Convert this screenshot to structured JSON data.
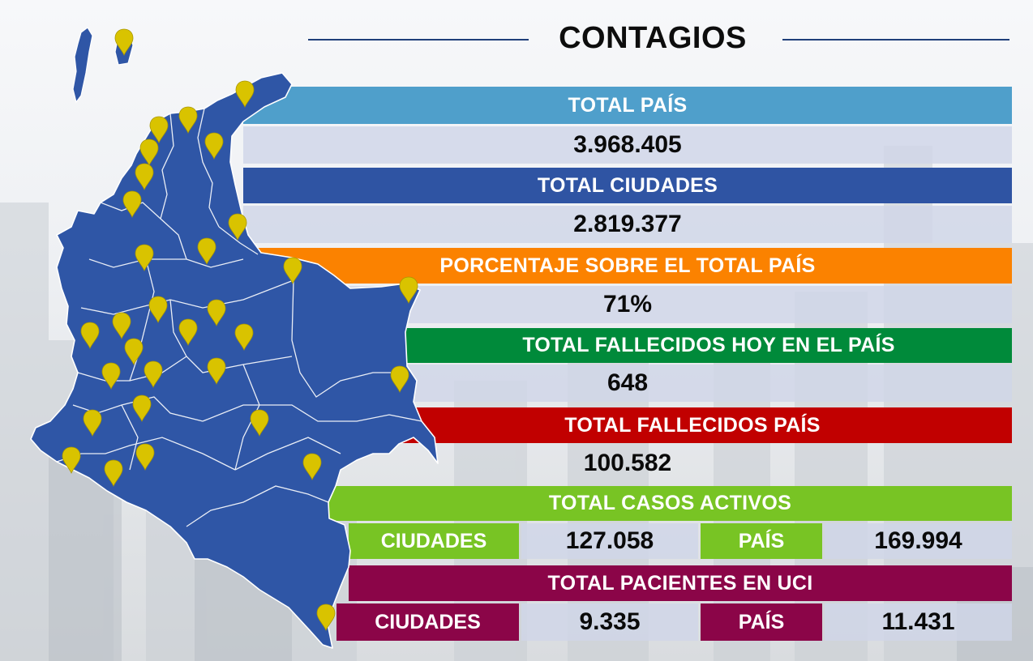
{
  "title": "CONTAGIOS",
  "colors": {
    "map_fill": "#2f56a6",
    "pin": "#d9c300",
    "total_pais": "#4f9fcb",
    "total_ciudades": "#2f54a3",
    "porcentaje": "#fb8200",
    "fallecidos_hoy": "#008a3a",
    "fallecidos_pais": "#c10000",
    "casos_activos": "#78c424",
    "uci": "#8b0548"
  },
  "total_pais": {
    "label": "TOTAL PAÍS",
    "value": "3.968.405"
  },
  "total_ciudades": {
    "label": "TOTAL CIUDADES",
    "value": "2.819.377"
  },
  "porcentaje": {
    "label": "PORCENTAJE SOBRE EL TOTAL PAÍS",
    "value": "71%"
  },
  "fallecidos_hoy": {
    "label": "TOTAL FALLECIDOS HOY EN EL PAÍS",
    "value": "648"
  },
  "fallecidos_pais": {
    "label": "TOTAL FALLECIDOS PAÍS",
    "value": "100.582"
  },
  "casos_activos": {
    "label": "TOTAL CASOS ACTIVOS",
    "ciudades_label": "CIUDADES",
    "ciudades_value": "127.058",
    "pais_label": "PAÍS",
    "pais_value": "169.994"
  },
  "uci": {
    "label": "TOTAL PACIENTES EN UCI",
    "ciudades_label": "CIUDADES",
    "ciudades_value": "9.335",
    "pais_label": "PAÍS",
    "pais_value": "11.431"
  },
  "map": {
    "icon": "colombia-map",
    "pin_icon": "location-pin-icon"
  }
}
